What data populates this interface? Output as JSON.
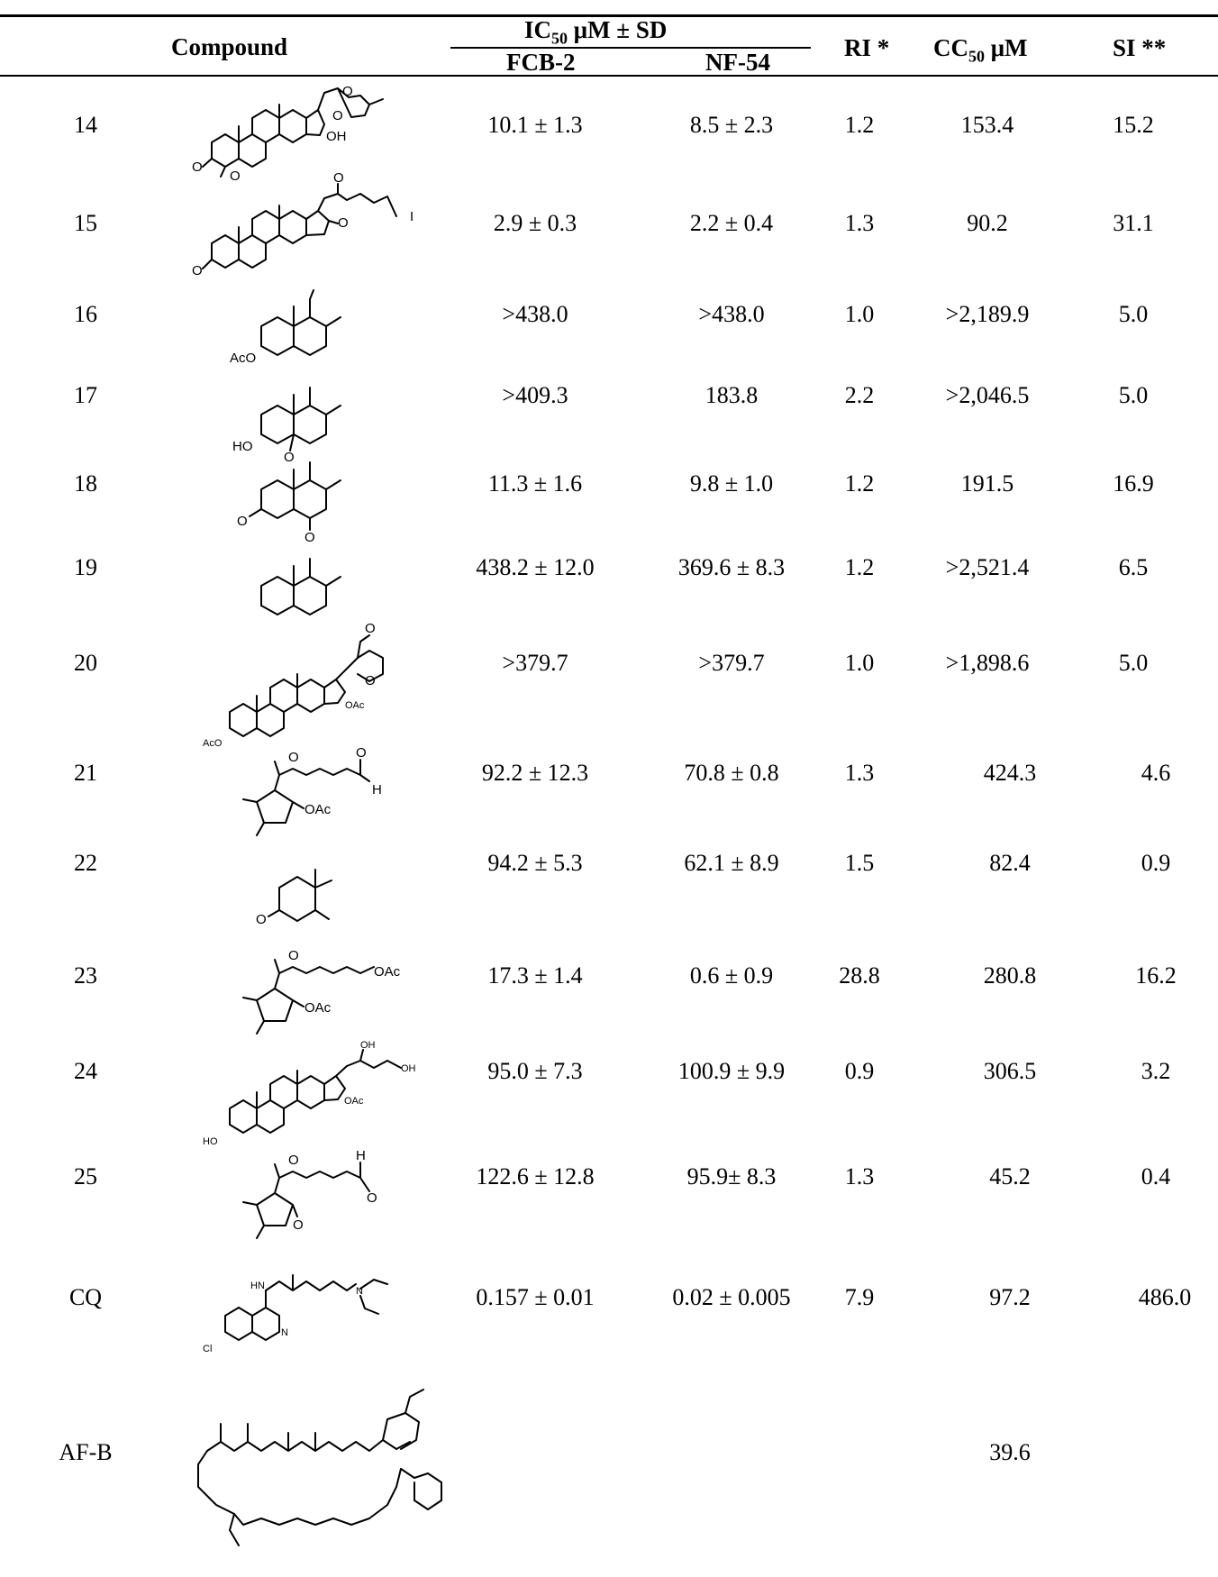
{
  "header": {
    "compound": "Compound",
    "ic50_main": "IC",
    "ic50_sub": "50",
    "ic50_rest": " μM ± SD",
    "fcb2": "FCB-2",
    "nf54": "NF-54",
    "ri": "RI *",
    "cc50_main": "CC",
    "cc50_sub": "50",
    "cc50_rest": " μM",
    "si": "SI **"
  },
  "rows": [
    {
      "id": "14",
      "fcb2": "10.1 ± 1.3",
      "nf54": "8.5 ± 2.3",
      "ri": "1.2",
      "cc50": "153.4",
      "si": "15.2"
    },
    {
      "id": "15",
      "fcb2": "2.9 ± 0.3",
      "nf54": "2.2 ± 0.4",
      "ri": "1.3",
      "cc50": "90.2",
      "si": "31.1"
    },
    {
      "id": "16",
      "fcb2": ">438.0",
      "nf54": ">438.0",
      "ri": "1.0",
      "cc50": ">2,189.9",
      "si": "5.0"
    },
    {
      "id": "17",
      "fcb2": ">409.3",
      "nf54": "183.8",
      "ri": "2.2",
      "cc50": ">2,046.5",
      "si": "5.0"
    },
    {
      "id": "18",
      "fcb2": "11.3 ± 1.6",
      "nf54": "9.8 ± 1.0",
      "ri": "1.2",
      "cc50": "191.5",
      "si": "16.9"
    },
    {
      "id": "19",
      "fcb2": "438.2 ± 12.0",
      "nf54": "369.6 ± 8.3",
      "ri": "1.2",
      "cc50": ">2,521.4",
      "si": "6.5"
    },
    {
      "id": "20",
      "fcb2": ">379.7",
      "nf54": ">379.7",
      "ri": "1.0",
      "cc50": ">1,898.6",
      "si": "5.0"
    },
    {
      "id": "21",
      "fcb2": "92.2 ± 12.3",
      "nf54": "70.8 ± 0.8",
      "ri": "1.3",
      "cc50": "424.3",
      "si": "4.6"
    },
    {
      "id": "22",
      "fcb2": "94.2 ± 5.3",
      "nf54": "62.1 ± 8.9",
      "ri": "1.5",
      "cc50": "82.4",
      "si": "0.9"
    },
    {
      "id": "23",
      "fcb2": "17.3 ± 1.4",
      "nf54": "0.6 ± 0.9",
      "ri": "28.8",
      "cc50": "280.8",
      "si": "16.2"
    },
    {
      "id": "24",
      "fcb2": "95.0 ± 7.3",
      "nf54": "100.9 ± 9.9",
      "ri": "0.9",
      "cc50": "306.5",
      "si": "3.2"
    },
    {
      "id": "25",
      "fcb2": "122.6 ± 12.8",
      "nf54": "95.9± 8.3",
      "ri": "1.3",
      "cc50": "45.2",
      "si": "0.4"
    },
    {
      "id": "CQ",
      "fcb2": "0.157 ± 0.01",
      "nf54": "0.02 ± 0.005",
      "ri": "7.9",
      "cc50": "97.2",
      "si": "486.0"
    },
    {
      "id": "AF-B",
      "fcb2": "",
      "nf54": "",
      "ri": "",
      "cc50": "39.6",
      "si": ""
    }
  ],
  "atom_labels": {
    "o": "O",
    "oh": "OH",
    "i": "I",
    "aco": "AcO",
    "ho": "HO",
    "oac": "OAc",
    "h": "H",
    "hn": "HN",
    "n": "N",
    "cl": "Cl",
    "aco_small": "AcO"
  }
}
